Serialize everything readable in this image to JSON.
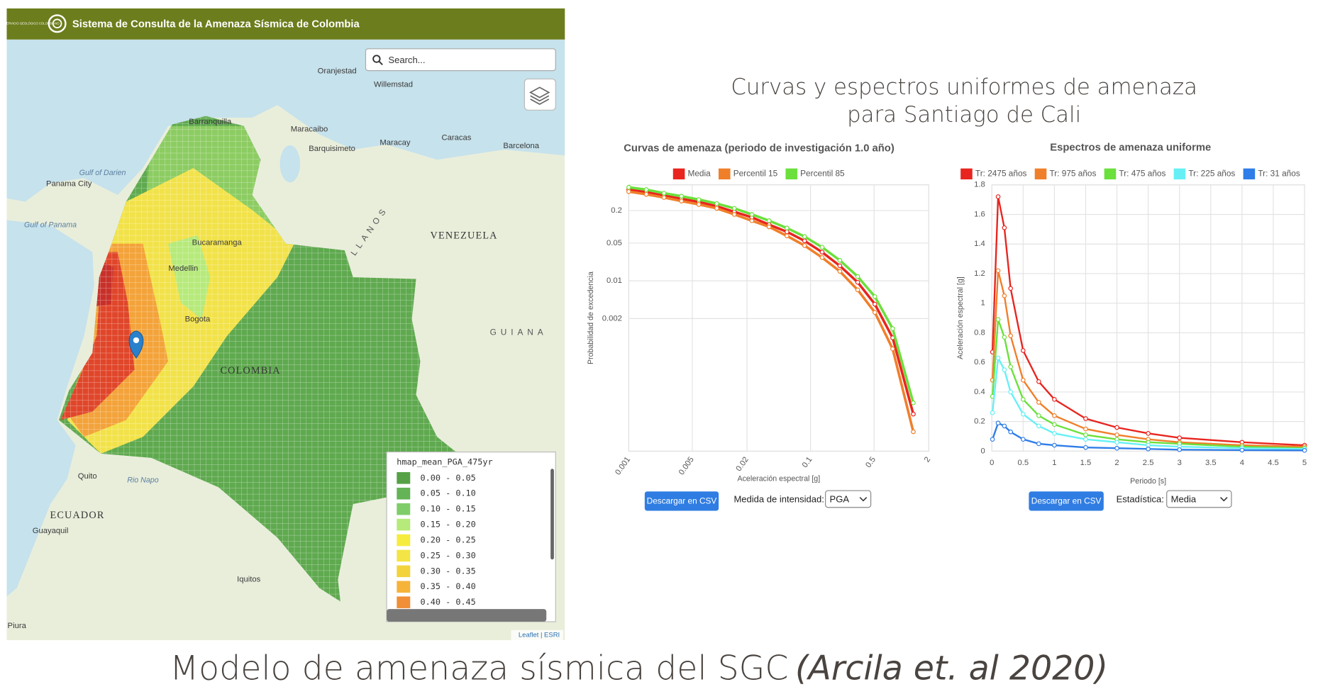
{
  "header": {
    "logo_text": "SERVICIO GEOLÓGICO COLOMBIANO",
    "title": "Sistema de Consulta de la Amenaza Sísmica de Colombia"
  },
  "map": {
    "search_placeholder": "Search...",
    "labels": [
      "Oranjestad",
      "Willemstad",
      "Barranquilla",
      "Maracaibo",
      "Caracas",
      "Barquisimeto",
      "Maracay",
      "Barcelona",
      "Panama City",
      "Gulf of Darien",
      "Gulf of Panama",
      "VENEZUELA",
      "LLANOS",
      "Medellin",
      "Bucaramanga",
      "Bogota",
      "COLOMBIA",
      "GUIANA",
      "Quito",
      "ECUADOR",
      "Guayaquil",
      "Iquitos",
      "Piura",
      "Rio Napo"
    ],
    "legend": {
      "title": "hmap_mean_PGA_475yr",
      "items": [
        {
          "label": "0.00 - 0.05",
          "color": "#56a146"
        },
        {
          "label": "0.05 - 0.10",
          "color": "#64b356"
        },
        {
          "label": "0.10 - 0.15",
          "color": "#7fcd68"
        },
        {
          "label": "0.15 - 0.20",
          "color": "#b6ea7a"
        },
        {
          "label": "0.20 - 0.25",
          "color": "#f6ec3f"
        },
        {
          "label": "0.25 - 0.30",
          "color": "#f3e545"
        },
        {
          "label": "0.30 - 0.35",
          "color": "#f3d33c"
        },
        {
          "label": "0.35 - 0.40",
          "color": "#f6b33a"
        },
        {
          "label": "0.40 - 0.45",
          "color": "#f08f38"
        }
      ]
    },
    "attribution": "Leaflet | ESRI"
  },
  "panel_title": [
    "Curvas y espectros uniformes de amenaza",
    "para Santiago de Cali"
  ],
  "chart_data": [
    {
      "type": "line",
      "title": "Curvas de amenaza (periodo de investigación 1.0 año)",
      "x_label": "Aceleración espectral [g]",
      "y_label": "Probabilidad de excedencia",
      "log_x": true,
      "log_y": true,
      "grid": true,
      "legend": "top",
      "x": [
        0.001,
        0.00156,
        0.00244,
        0.0038,
        0.0059,
        0.0093,
        0.0145,
        0.0226,
        0.035,
        0.055,
        0.086,
        0.134,
        0.21,
        0.33,
        0.51,
        0.8,
        1.35
      ],
      "xlim": [
        0.001,
        2
      ],
      "xticks": [
        0.001,
        0.005,
        0.02,
        0.1,
        0.5,
        2
      ],
      "ylim": [
        7e-06,
        0.6
      ],
      "yticks": [
        0.2,
        0.05,
        0.01,
        0.002
      ],
      "series": [
        {
          "name": "Media",
          "color": "#e8251f",
          "values": [
            0.49,
            0.44,
            0.38,
            0.33,
            0.29,
            0.24,
            0.19,
            0.15,
            0.11,
            0.081,
            0.055,
            0.034,
            0.019,
            0.0094,
            0.0037,
            0.00088,
            3.4e-05
          ]
        },
        {
          "name": "Percentil 15",
          "color": "#f07f2a",
          "values": [
            0.45,
            0.4,
            0.35,
            0.3,
            0.26,
            0.22,
            0.17,
            0.13,
            0.1,
            0.068,
            0.045,
            0.027,
            0.015,
            0.0068,
            0.0026,
            0.00055,
            1.6e-05
          ]
        },
        {
          "name": "Percentil 85",
          "color": "#6be03c",
          "values": [
            0.54,
            0.49,
            0.42,
            0.37,
            0.32,
            0.27,
            0.22,
            0.17,
            0.13,
            0.095,
            0.066,
            0.042,
            0.024,
            0.012,
            0.0051,
            0.0013,
            5.5e-05
          ]
        }
      ]
    },
    {
      "type": "line",
      "title": "Espectros de amenaza uniforme",
      "x_label": "Periodo [s]",
      "y_label": "Aceleración espectral [g]",
      "log_x": false,
      "log_y": false,
      "grid": true,
      "legend": "top",
      "x": [
        0.01,
        0.1,
        0.2,
        0.3,
        0.5,
        0.75,
        1,
        1.5,
        2,
        2.5,
        3,
        4,
        5
      ],
      "xlim": [
        0,
        5
      ],
      "xticks": [
        0,
        0.5,
        1,
        1.5,
        2,
        2.5,
        3,
        3.5,
        4,
        4.5,
        5
      ],
      "ylim": [
        0,
        1.8
      ],
      "yticks": [
        0,
        0.2,
        0.4,
        0.6,
        0.8,
        1,
        1.2,
        1.4,
        1.6,
        1.8
      ],
      "series": [
        {
          "name": "Tr: 2475 años",
          "color": "#e8251f",
          "values": [
            0.67,
            1.72,
            1.51,
            1.1,
            0.68,
            0.47,
            0.35,
            0.22,
            0.16,
            0.12,
            0.09,
            0.06,
            0.04
          ]
        },
        {
          "name": "Tr: 975 años",
          "color": "#f07f2a",
          "values": [
            0.48,
            1.22,
            1.05,
            0.78,
            0.48,
            0.33,
            0.24,
            0.15,
            0.11,
            0.08,
            0.06,
            0.04,
            0.03
          ]
        },
        {
          "name": "Tr: 475 años",
          "color": "#6be03c",
          "values": [
            0.37,
            0.89,
            0.77,
            0.57,
            0.35,
            0.24,
            0.18,
            0.11,
            0.08,
            0.06,
            0.05,
            0.03,
            0.02
          ]
        },
        {
          "name": "Tr: 225 años",
          "color": "#66f0f5",
          "values": [
            0.26,
            0.63,
            0.55,
            0.4,
            0.25,
            0.17,
            0.12,
            0.08,
            0.06,
            0.04,
            0.03,
            0.02,
            0.015
          ]
        },
        {
          "name": "Tr: 31 años",
          "color": "#2f7de8",
          "values": [
            0.08,
            0.19,
            0.17,
            0.13,
            0.08,
            0.05,
            0.04,
            0.025,
            0.02,
            0.015,
            0.01,
            0.007,
            0.005
          ]
        }
      ]
    }
  ],
  "controls": [
    {
      "button": "Descargar en CSV",
      "label": "Medida de intensidad:",
      "selected": "PGA"
    },
    {
      "button": "Descargar en CSV",
      "label": "Estadística:",
      "selected": "Media"
    }
  ],
  "caption": {
    "text": "Modelo de amenaza sísmica del SGC",
    "citation": "(Arcila et. al 2020)"
  }
}
